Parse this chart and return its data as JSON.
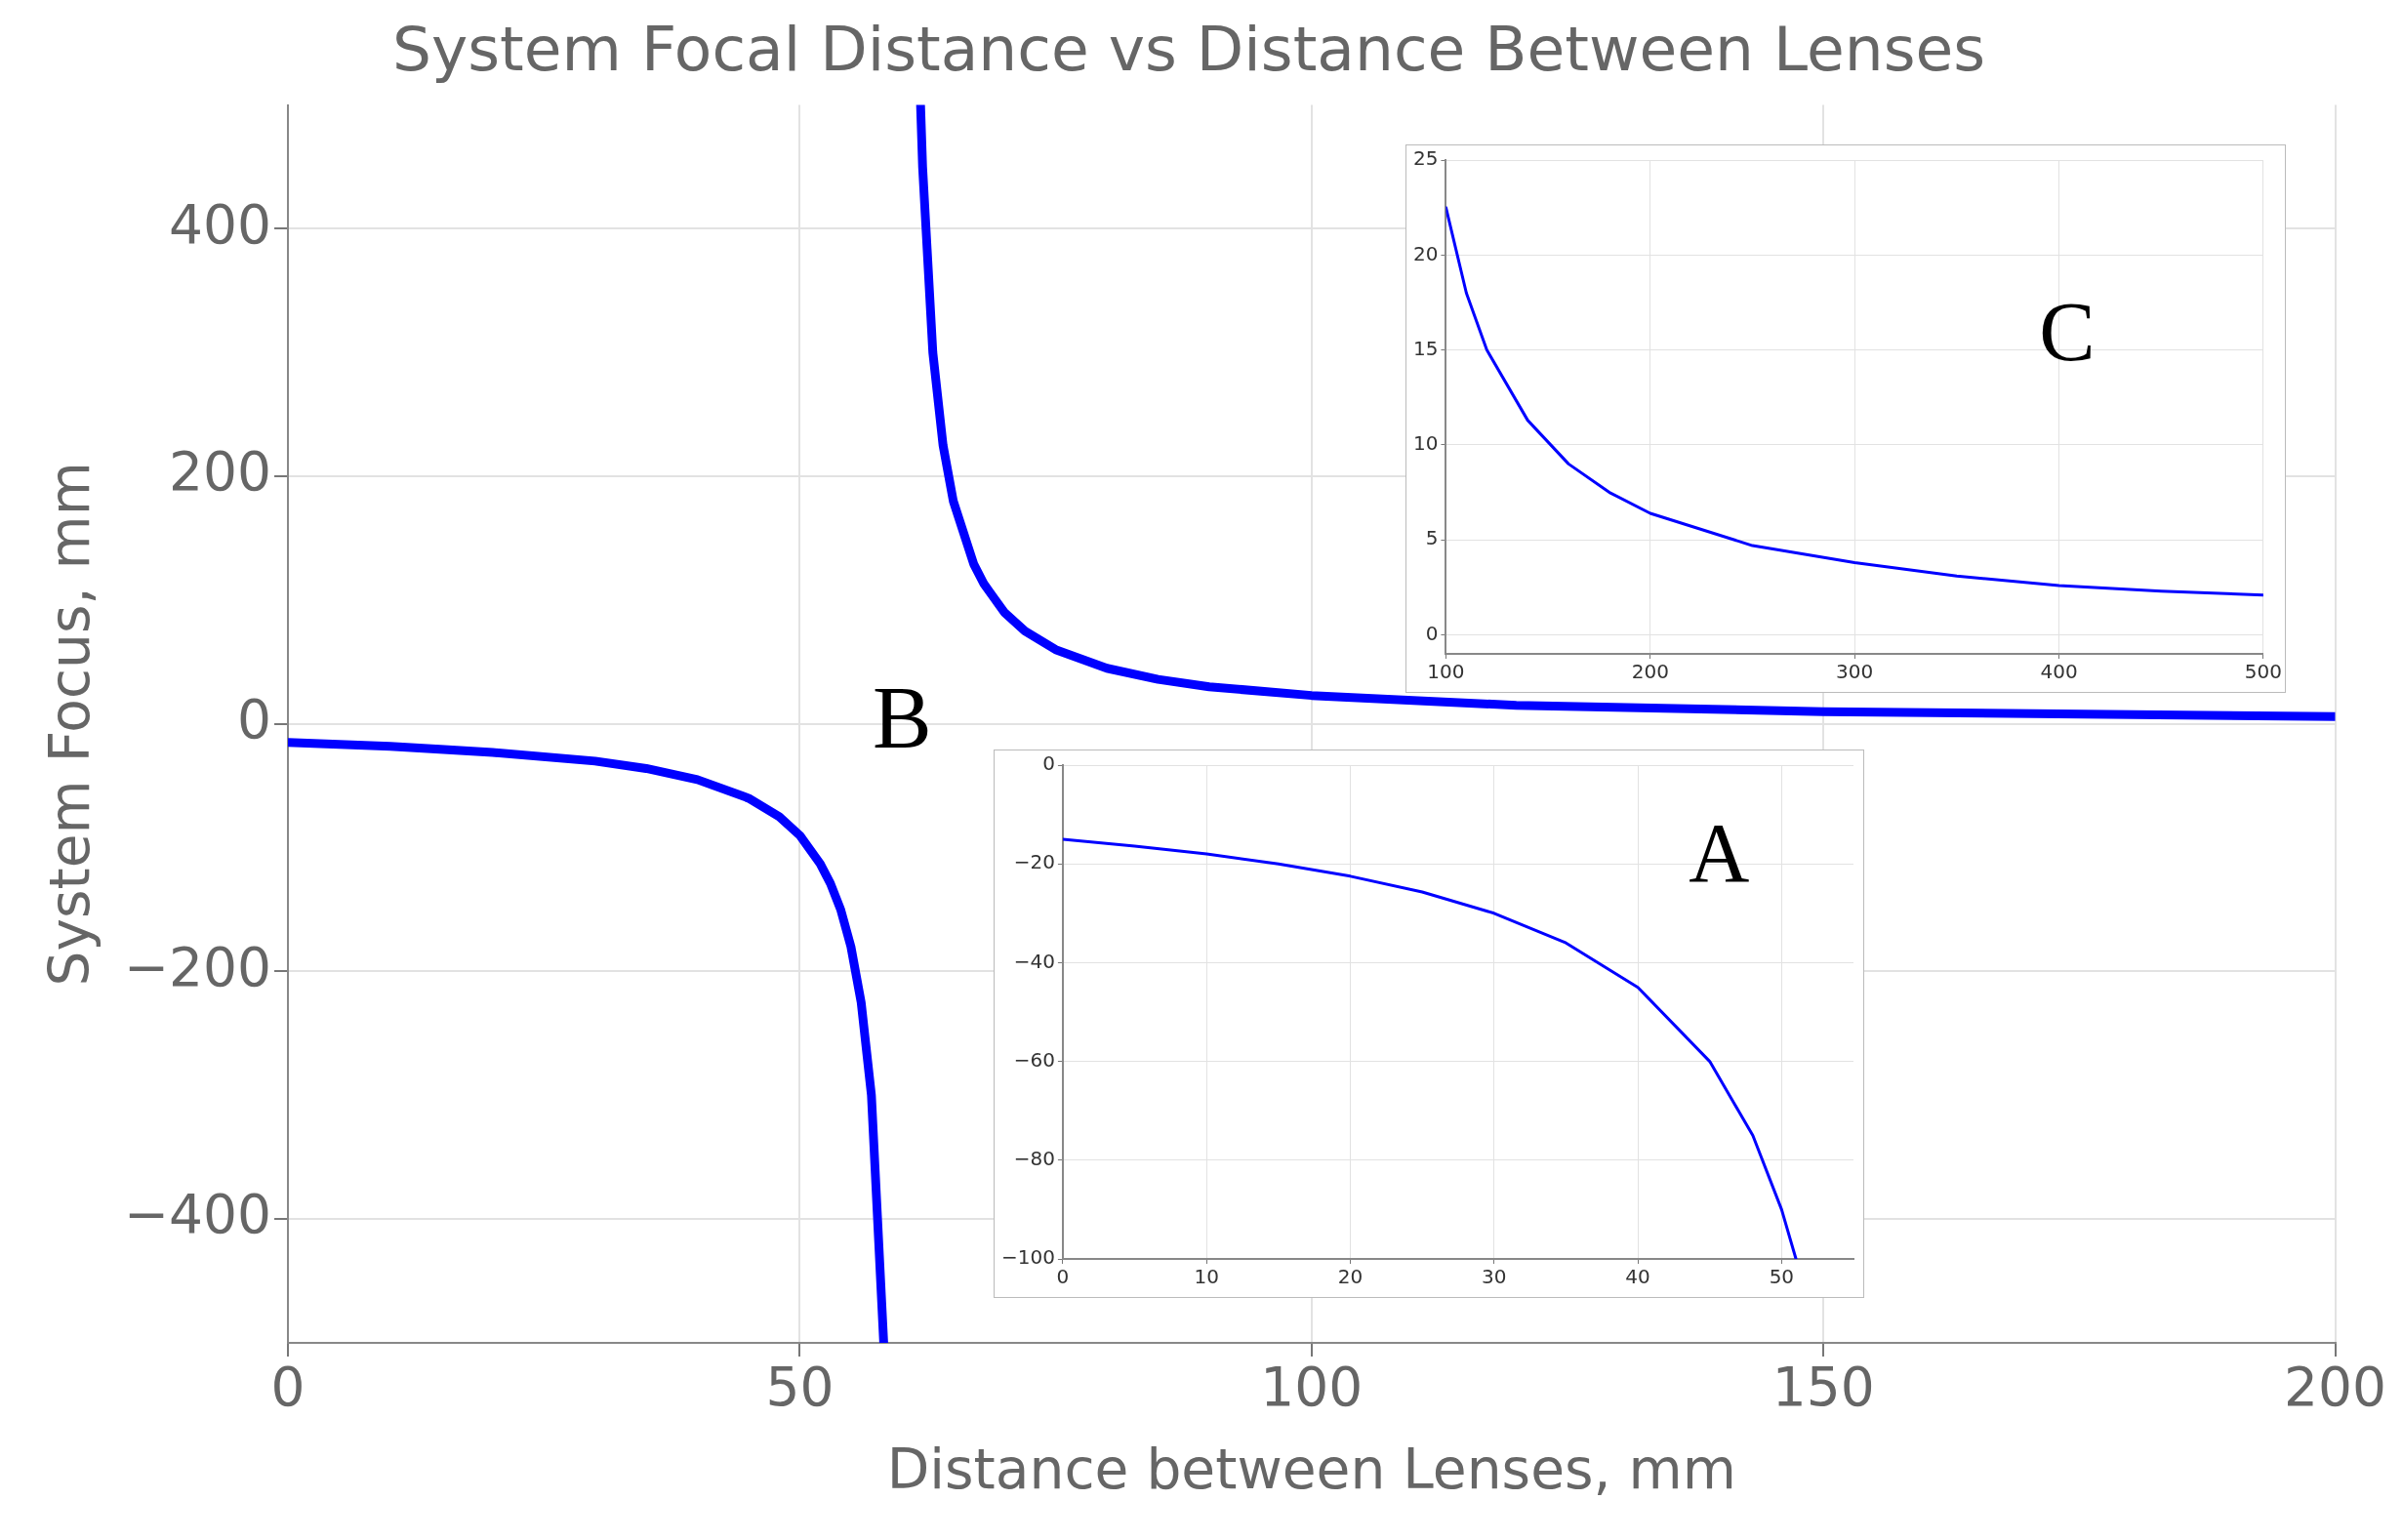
{
  "chart_data": [
    {
      "type": "line",
      "title": "System Focal Distance vs Distance Between Lenses",
      "xlabel": "Distance between Lenses, mm",
      "ylabel": "System Focus, mm",
      "xlim": [
        0,
        200
      ],
      "ylim": [
        -500,
        500
      ],
      "xticks": [
        0,
        50,
        100,
        150,
        200
      ],
      "yticks": [
        -400,
        -200,
        0,
        200,
        400
      ],
      "grid": true,
      "annotations": [
        "B"
      ],
      "series": [
        {
          "color": "#0000ff",
          "x": [
            0,
            10,
            20,
            30,
            35,
            40,
            45,
            48,
            50,
            52,
            53,
            54,
            55,
            56,
            57,
            58.2
          ],
          "values": [
            -15,
            -18,
            -23,
            -30,
            -36,
            -45,
            -60,
            -75,
            -90,
            -113,
            -129,
            -150,
            -180,
            -225,
            -300,
            -500
          ]
        },
        {
          "color": "#0000ff",
          "x": [
            61.8,
            62,
            63,
            64,
            65,
            67,
            68,
            70,
            72,
            75,
            80,
            85,
            90,
            100,
            120,
            150,
            200
          ],
          "values": [
            500,
            450,
            300,
            225,
            180,
            129,
            113,
            90,
            75,
            60,
            45,
            36,
            30,
            23,
            15,
            10,
            6
          ]
        }
      ]
    },
    {
      "type": "line",
      "xlim": [
        0,
        55
      ],
      "ylim": [
        -100,
        0
      ],
      "xticks": [
        0,
        10,
        20,
        30,
        40,
        50
      ],
      "yticks": [
        -100,
        -80,
        -60,
        -40,
        -20,
        0
      ],
      "grid": true,
      "annotations": [
        "A"
      ],
      "color": "#0000ff",
      "x": [
        0,
        5,
        10,
        15,
        20,
        25,
        30,
        35,
        40,
        45,
        48,
        50,
        51
      ],
      "values": [
        -15,
        -16.4,
        -18,
        -20,
        -22.5,
        -25.7,
        -30,
        -36,
        -45,
        -60,
        -75,
        -90,
        -100
      ]
    },
    {
      "type": "line",
      "xlim": [
        100,
        500
      ],
      "ylim": [
        -1,
        25
      ],
      "xticks": [
        100,
        200,
        300,
        400,
        500
      ],
      "yticks": [
        0,
        5,
        10,
        15,
        20,
        25
      ],
      "grid": true,
      "annotations": [
        "C"
      ],
      "color": "#0000ff",
      "x": [
        100,
        110,
        120,
        140,
        160,
        180,
        200,
        250,
        300,
        350,
        400,
        450,
        500
      ],
      "values": [
        22.5,
        18,
        15,
        11.3,
        9,
        7.5,
        6.4,
        4.7,
        3.8,
        3.1,
        2.6,
        2.3,
        2.1
      ]
    }
  ]
}
